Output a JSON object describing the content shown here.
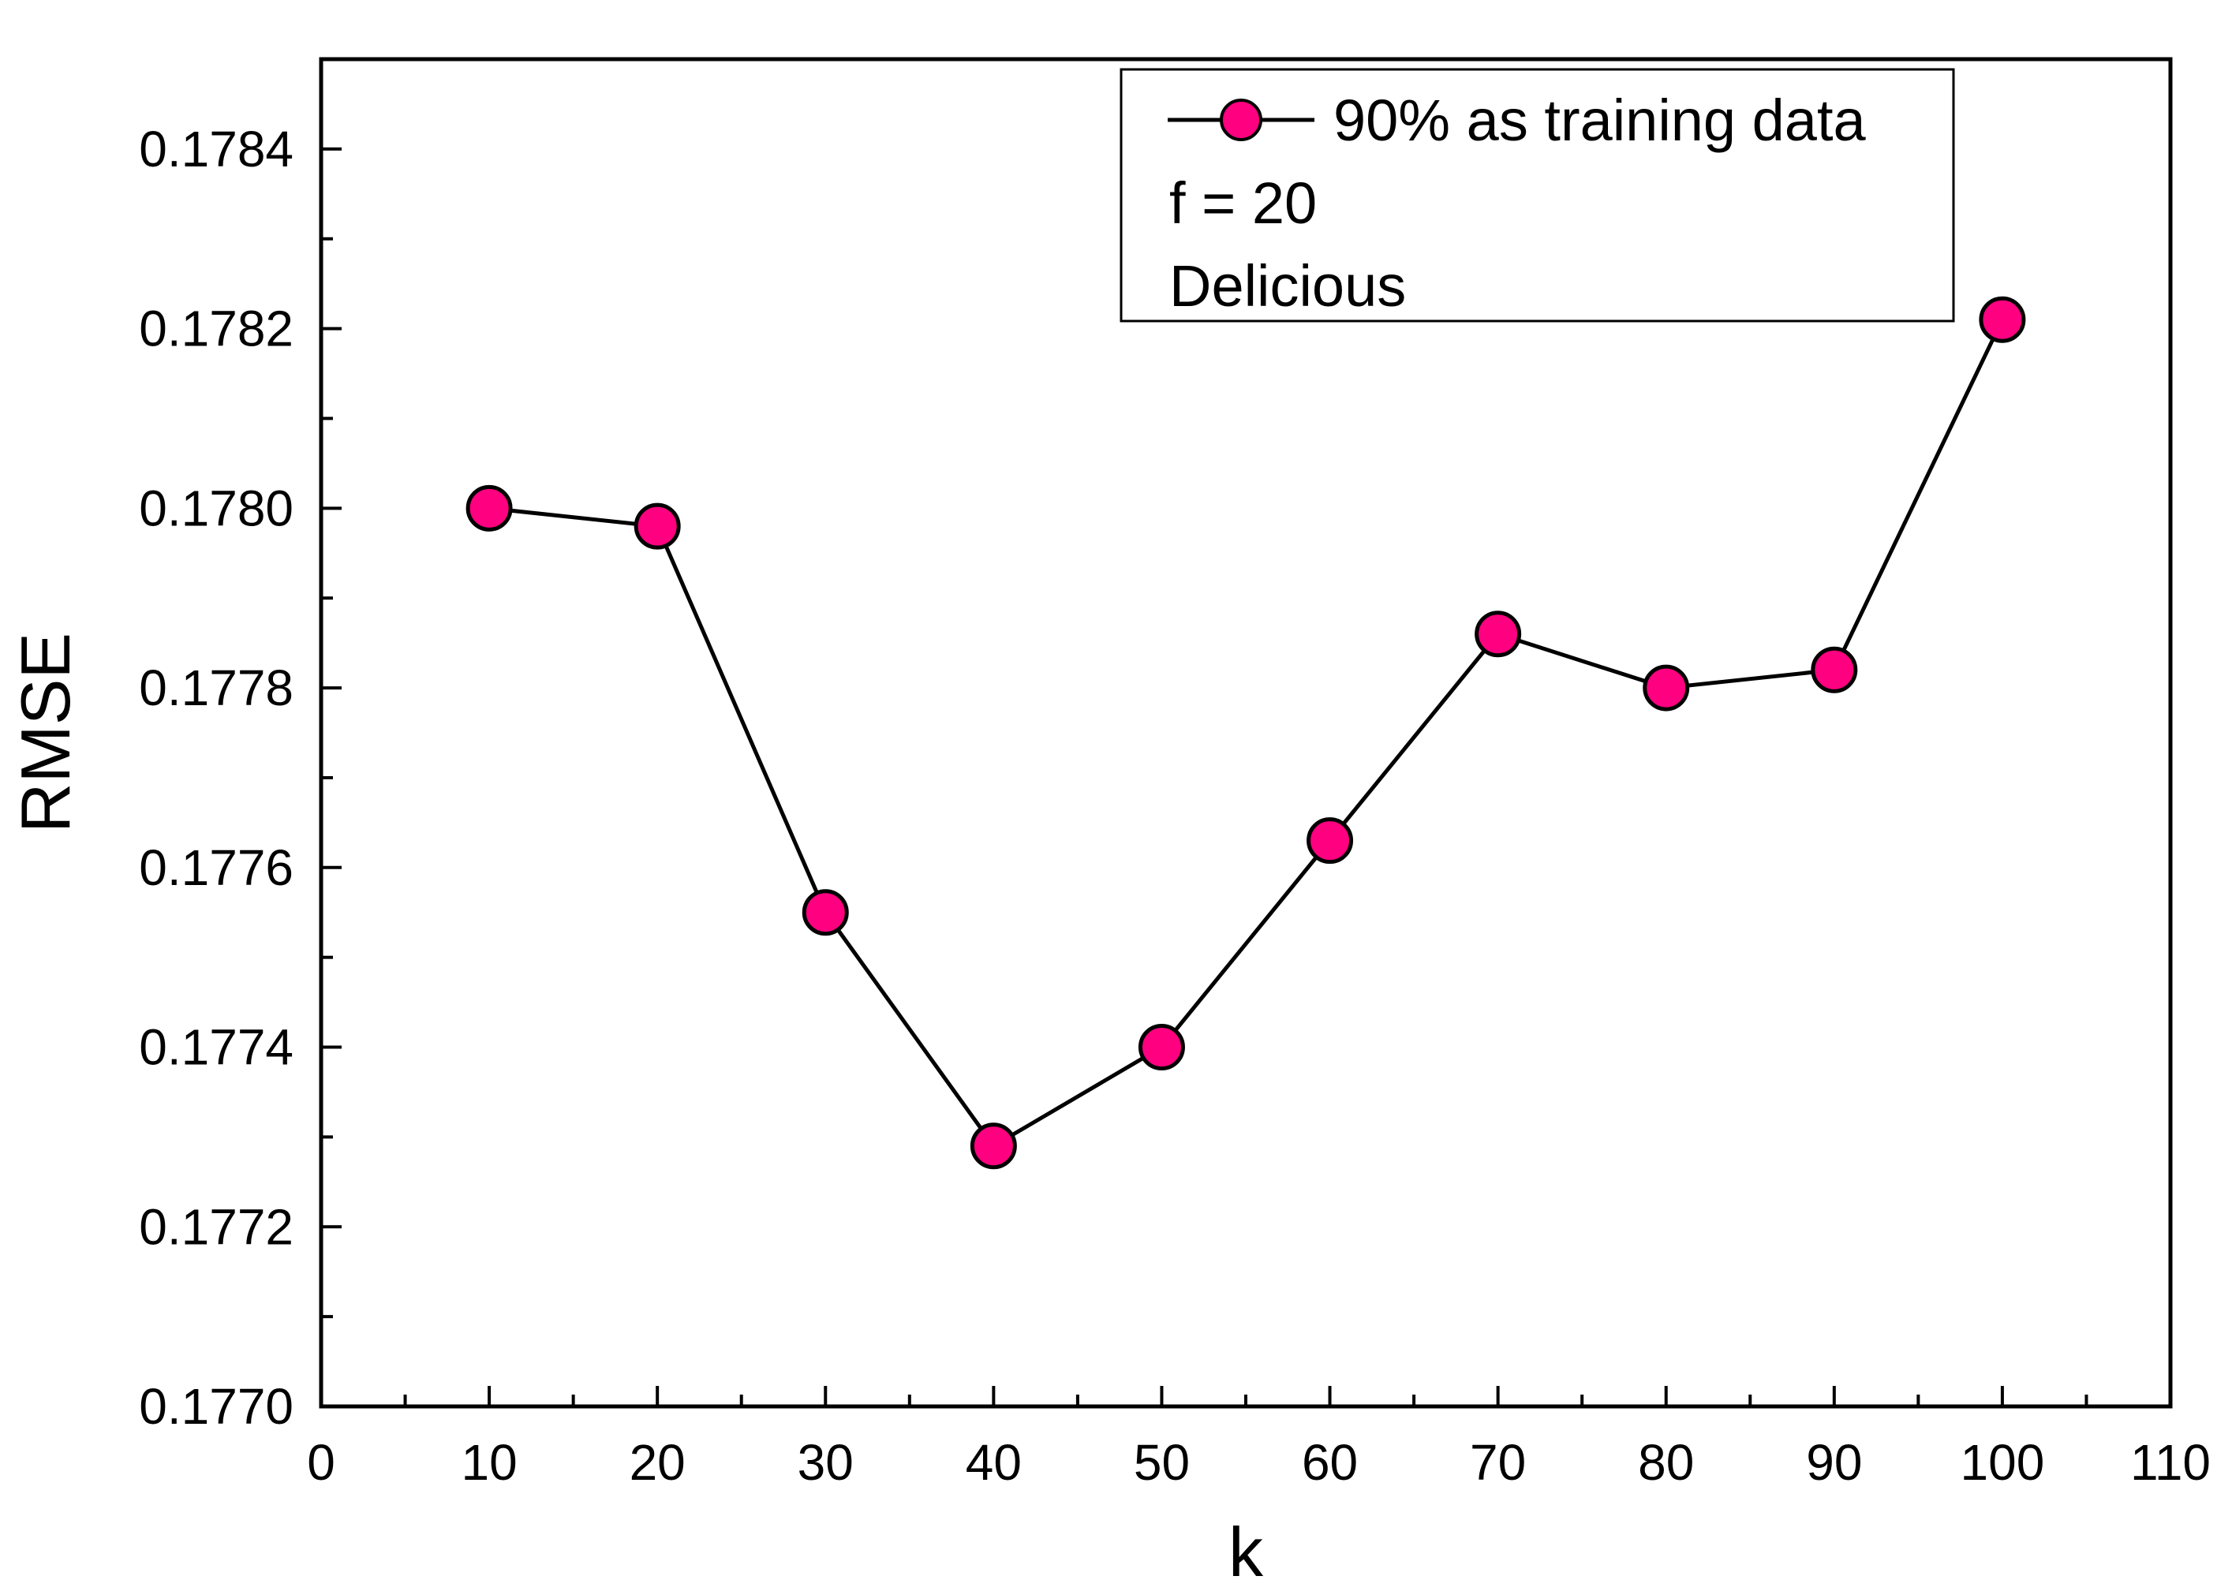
{
  "chart_data": {
    "type": "line",
    "title": "",
    "xlabel": "k",
    "ylabel": "RMSE",
    "xlim": [
      0,
      110
    ],
    "ylim": [
      0.177,
      0.1785
    ],
    "x_ticks": [
      0,
      10,
      20,
      30,
      40,
      50,
      60,
      70,
      80,
      90,
      100,
      110
    ],
    "x_tick_labels": [
      "0",
      "10",
      "20",
      "30",
      "40",
      "50",
      "60",
      "70",
      "80",
      "90",
      "100",
      "110"
    ],
    "y_ticks": [
      0.177,
      0.1772,
      0.1774,
      0.1776,
      0.1778,
      0.178,
      0.1782,
      0.1784
    ],
    "y_tick_labels": [
      "0.1770",
      "0.1772",
      "0.1774",
      "0.1776",
      "0.1778",
      "0.1780",
      "0.1782",
      "0.1784"
    ],
    "grid": false,
    "legend_position": "top-right",
    "series": [
      {
        "name": "90% as training data",
        "x": [
          10,
          20,
          30,
          40,
          50,
          60,
          70,
          80,
          90,
          100
        ],
        "values": [
          0.178,
          0.17798,
          0.17755,
          0.17729,
          0.1774,
          0.17763,
          0.17786,
          0.1778,
          0.17782,
          0.17821
        ],
        "line_color": "#000000",
        "marker": "circle",
        "marker_color": "#ff0080",
        "marker_edge_color": "#000000"
      }
    ],
    "annotations": [
      "f = 20",
      "Delicious"
    ]
  }
}
